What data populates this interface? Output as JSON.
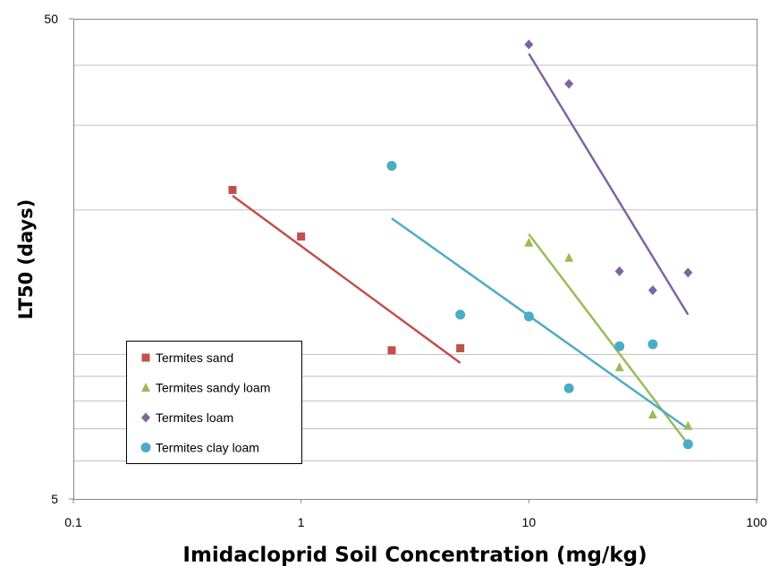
{
  "chart_data": {
    "type": "scatter",
    "xlabel": "Imidacloprid Soil Concentration (mg/kg)",
    "ylabel": "LT50 (days)",
    "x_scale": "log",
    "y_scale": "log",
    "xlim": [
      0.1,
      100
    ],
    "ylim": [
      5,
      50
    ],
    "x_ticks": [
      0.1,
      1,
      10,
      100
    ],
    "x_tick_labels": [
      "0.1",
      "1",
      "10",
      "100"
    ],
    "y_ticks": [
      5,
      50
    ],
    "y_tick_labels": [
      "5",
      "50"
    ],
    "grid": "horizontal",
    "legend_position": "bottom-left",
    "series": [
      {
        "name": "Termites sand",
        "color": "#c0504d",
        "marker": "square",
        "points": [
          [
            0.5,
            22.0
          ],
          [
            1.0,
            17.6
          ],
          [
            2.5,
            10.2
          ],
          [
            5.0,
            10.3
          ]
        ],
        "trend": [
          [
            0.5,
            21.4
          ],
          [
            5.0,
            9.6
          ]
        ]
      },
      {
        "name": "Termites sandy loam",
        "color": "#9bbb59",
        "marker": "triangle",
        "points": [
          [
            10,
            17.1
          ],
          [
            15,
            15.9
          ],
          [
            25,
            9.4
          ],
          [
            35,
            7.5
          ],
          [
            50,
            7.1
          ]
        ],
        "trend": [
          [
            10,
            17.8
          ],
          [
            50,
            6.5
          ]
        ]
      },
      {
        "name": "Termites loam",
        "color": "#8064a2",
        "marker": "diamond",
        "points": [
          [
            10,
            44.2
          ],
          [
            15,
            36.6
          ],
          [
            25,
            14.9
          ],
          [
            35,
            13.6
          ],
          [
            50,
            14.8
          ]
        ],
        "trend": [
          [
            10,
            42.3
          ],
          [
            50,
            12.1
          ]
        ]
      },
      {
        "name": "Termites clay loam",
        "color": "#4bacc6",
        "marker": "circle",
        "points": [
          [
            2.5,
            24.7
          ],
          [
            5.0,
            12.1
          ],
          [
            10,
            12.0
          ],
          [
            15,
            8.5
          ],
          [
            25,
            10.4
          ],
          [
            35,
            10.5
          ],
          [
            50,
            6.5
          ]
        ],
        "trend": [
          [
            2.5,
            19.2
          ],
          [
            50,
            7.0
          ]
        ]
      }
    ]
  }
}
